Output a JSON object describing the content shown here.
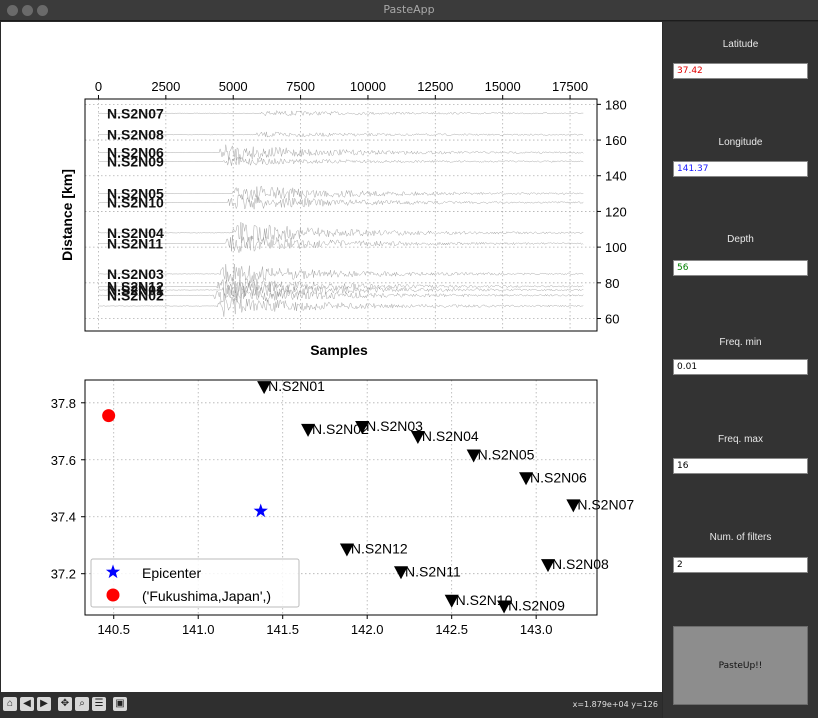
{
  "window": {
    "title": "PasteApp"
  },
  "sidebar": {
    "fields": [
      {
        "label": "Latitude",
        "value": "37.42",
        "color": "#e00000"
      },
      {
        "label": "Longitude",
        "value": "141.37",
        "color": "#1a1aff"
      },
      {
        "label": "Depth",
        "value": "56",
        "color": "#008000"
      },
      {
        "label": "Freq. min",
        "value": "0.01",
        "color": "#000000"
      },
      {
        "label": "Freq. max",
        "value": "16",
        "color": "#000000"
      },
      {
        "label": "Num. of filters",
        "value": "2",
        "color": "#000000"
      }
    ],
    "button_label": "PasteUp!!"
  },
  "toolbar": {
    "buttons": [
      "home-icon",
      "back-icon",
      "forward-icon",
      "pan-icon",
      "zoom-icon",
      "configure-icon",
      "save-icon"
    ],
    "coordinates": "x=1.879e+04 y=126"
  },
  "chart_data": [
    {
      "type": "line",
      "xlabel": "Samples",
      "ylabel": "Distance [km]",
      "xlim": [
        -500,
        18500
      ],
      "ylim": [
        53,
        183
      ],
      "x_ticks": [
        0,
        2500,
        5000,
        7500,
        10000,
        12500,
        15000,
        17500
      ],
      "x_tick_labels": [
        "0",
        "2500",
        "5000",
        "7500",
        "10000",
        "12500",
        "15000",
        "17500"
      ],
      "y_ticks": [
        60,
        80,
        100,
        120,
        140,
        160,
        180
      ],
      "y_tick_labels": [
        "60",
        "80",
        "100",
        "120",
        "140",
        "160",
        "180"
      ],
      "x_axis_position": "top",
      "y_axis_position": "right",
      "grid": true,
      "traces": [
        {
          "station": "N.S2N07",
          "distance": 175,
          "onset": 6000,
          "amplitude": 1.2
        },
        {
          "station": "N.S2N08",
          "distance": 163,
          "onset": 5800,
          "amplitude": 1.2
        },
        {
          "station": "N.S2N06",
          "distance": 153,
          "onset": 4500,
          "amplitude": 4
        },
        {
          "station": "N.S2N09",
          "distance": 148,
          "onset": 4600,
          "amplitude": 2
        },
        {
          "station": "N.S2N05",
          "distance": 130,
          "onset": 5000,
          "amplitude": 4.5
        },
        {
          "station": "N.S2N10",
          "distance": 125,
          "onset": 4800,
          "amplitude": 4
        },
        {
          "station": "N.S2N04",
          "distance": 108,
          "onset": 5000,
          "amplitude": 5
        },
        {
          "station": "N.S2N11",
          "distance": 102,
          "onset": 4700,
          "amplitude": 4.5
        },
        {
          "station": "N.S2N03",
          "distance": 85,
          "onset": 4500,
          "amplitude": 5
        },
        {
          "station": "N.S2N12",
          "distance": 78,
          "onset": 4400,
          "amplitude": 5
        },
        {
          "station": "N.S2N01",
          "distance": 76,
          "onset": 4600,
          "amplitude": 5
        },
        {
          "station": "N.S2N02",
          "distance": 73,
          "onset": 4300,
          "amplitude": 5
        },
        {
          "station": "",
          "distance": 67,
          "onset": 4400,
          "amplitude": 5
        }
      ]
    },
    {
      "type": "scatter",
      "xlim": [
        140.33,
        143.36
      ],
      "ylim": [
        37.055,
        37.88
      ],
      "x_ticks": [
        140.5,
        141.0,
        141.5,
        142.0,
        142.5,
        143.0
      ],
      "x_tick_labels": [
        "140.5",
        "141.0",
        "141.5",
        "142.0",
        "142.5",
        "143.0"
      ],
      "y_ticks": [
        37.2,
        37.4,
        37.6,
        37.8
      ],
      "y_tick_labels": [
        "37.2",
        "37.4",
        "37.6",
        "37.8"
      ],
      "grid": true,
      "legend_position": "lower-left",
      "legend": [
        {
          "label": "Epicenter",
          "marker": "star",
          "color": "#0000ff"
        },
        {
          "label": "('Fukushima,Japan',)",
          "marker": "circle",
          "color": "#ff0000"
        }
      ],
      "epicenter": {
        "lon": 141.37,
        "lat": 37.42
      },
      "city": {
        "lon": 140.47,
        "lat": 37.755
      },
      "stations": [
        {
          "name": "N.S2N01",
          "lon": 141.39,
          "lat": 37.855
        },
        {
          "name": "N.S2N02",
          "lon": 141.65,
          "lat": 37.705
        },
        {
          "name": "N.S2N03",
          "lon": 141.97,
          "lat": 37.715
        },
        {
          "name": "N.S2N04",
          "lon": 142.3,
          "lat": 37.68
        },
        {
          "name": "N.S2N05",
          "lon": 142.63,
          "lat": 37.615
        },
        {
          "name": "N.S2N06",
          "lon": 142.94,
          "lat": 37.535
        },
        {
          "name": "N.S2N07",
          "lon": 143.22,
          "lat": 37.44
        },
        {
          "name": "N.S2N08",
          "lon": 143.07,
          "lat": 37.23
        },
        {
          "name": "N.S2N09",
          "lon": 142.81,
          "lat": 37.085
        },
        {
          "name": "N.S2N10",
          "lon": 142.5,
          "lat": 37.105
        },
        {
          "name": "N.S2N11",
          "lon": 142.2,
          "lat": 37.205
        },
        {
          "name": "N.S2N12",
          "lon": 141.88,
          "lat": 37.285
        }
      ]
    }
  ]
}
